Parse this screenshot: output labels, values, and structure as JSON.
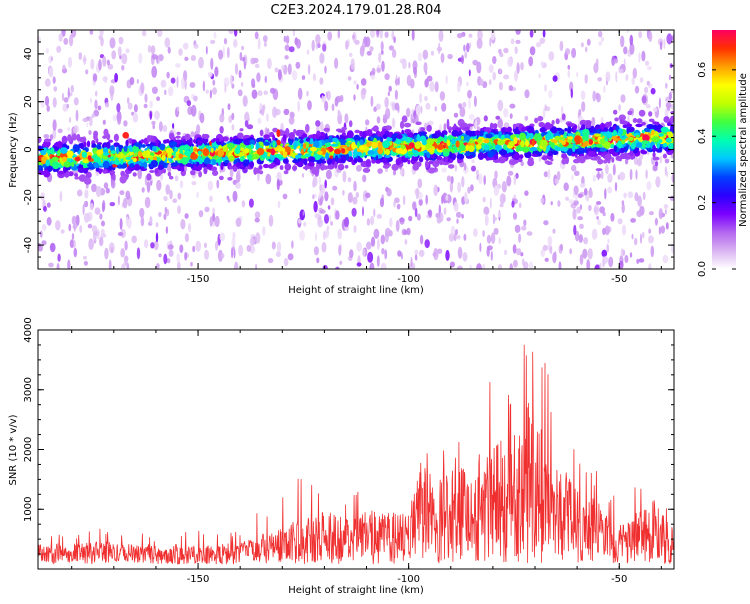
{
  "title": "C2E3.2024.179.01.28.R04",
  "chart_data": [
    {
      "type": "heatmap",
      "name": "spectrogram",
      "xlabel": "Height of straight line (km)",
      "ylabel": "Frequency (Hz)",
      "xlim": [
        -188,
        -37
      ],
      "ylim": [
        -50,
        50
      ],
      "xticks": [
        -150,
        -100,
        -50
      ],
      "yticks": [
        -40,
        -20,
        0,
        20,
        40
      ],
      "colorbar": {
        "label": "Normalized spectral amplitude",
        "range": [
          0,
          0.72
        ],
        "ticks": [
          "0.0",
          "0.2",
          "0.4",
          "0.6"
        ],
        "colors": [
          "#ffffff",
          "#d9b3f2",
          "#b366f0",
          "#7a00ff",
          "#2a00ff",
          "#0040ff",
          "#00c8ff",
          "#00ffb0",
          "#40ff40",
          "#c0ff00",
          "#ffff00",
          "#ffa000",
          "#ff3000",
          "#ff0060"
        ]
      },
      "band": {
        "center_start": -4,
        "center_end": 5,
        "half_width_hz": 6,
        "peak_amplitude": 0.68
      },
      "grid": false
    },
    {
      "type": "line",
      "name": "snr",
      "xlabel": "Height of straight line (km)",
      "ylabel": "SNR (10 * v/v)",
      "xlim": [
        -188,
        -37
      ],
      "ylim": [
        0,
        4000
      ],
      "xticks": [
        -150,
        -100,
        -50
      ],
      "yticks": [
        1000,
        2000,
        3000,
        4000
      ],
      "color": "#f03030",
      "envelope": {
        "x": [
          -188,
          -170,
          -160,
          -150,
          -140,
          -135,
          -125,
          -120,
          -110,
          -100,
          -97,
          -90,
          -85,
          -80,
          -75,
          -72,
          -70,
          -68,
          -65,
          -60,
          -55,
          -50,
          -45,
          -42,
          -40,
          -37
        ],
        "y_typical": [
          250,
          300,
          250,
          260,
          280,
          400,
          600,
          700,
          700,
          650,
          1300,
          1200,
          1400,
          1500,
          1800,
          2200,
          2000,
          1700,
          1400,
          1000,
          800,
          500,
          700,
          900,
          700,
          400
        ],
        "y_peak": [
          600,
          700,
          550,
          650,
          700,
          1000,
          1600,
          1300,
          1300,
          1000,
          2000,
          2100,
          2600,
          3300,
          3300,
          3900,
          4000,
          3700,
          2600,
          2200,
          1600,
          1100,
          1700,
          1600,
          1300,
          600
        ]
      },
      "grid": false
    }
  ]
}
